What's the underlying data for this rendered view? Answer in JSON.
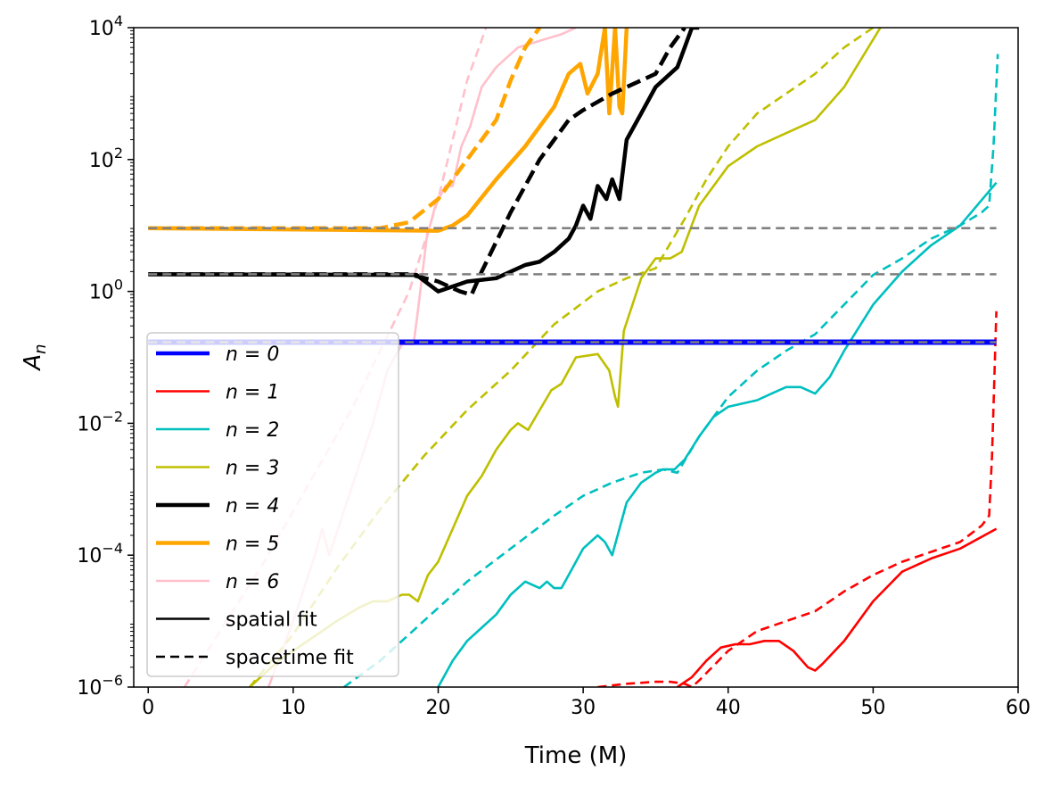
{
  "chart_data": {
    "type": "line",
    "xlabel": "Time (M)",
    "ylabel": "A_n",
    "xlim": [
      -1,
      60
    ],
    "ylim_log10": [
      -6,
      4
    ],
    "yscale": "log",
    "x_ticks": [
      0,
      10,
      20,
      30,
      40,
      50,
      60
    ],
    "x_tick_labels": [
      "0",
      "10",
      "20",
      "30",
      "40",
      "50",
      "60"
    ],
    "y_ticks_log10": [
      -6,
      -4,
      -2,
      0,
      2,
      4
    ],
    "y_tick_labels": [
      "10",
      "10",
      "10",
      "10",
      "10",
      "10"
    ],
    "y_tick_exponents": [
      "−6",
      "−4",
      "−2",
      "0",
      "2",
      "4"
    ],
    "legend_placement": "lower-left",
    "legend": [
      {
        "label": "n = 0",
        "color": "#0000ff",
        "dash": "solid",
        "width": "thick"
      },
      {
        "label": "n = 1",
        "color": "#ff0000",
        "dash": "solid",
        "width": "normal"
      },
      {
        "label": "n = 2",
        "color": "#00bfbf",
        "dash": "solid",
        "width": "normal"
      },
      {
        "label": "n = 3",
        "color": "#bfbf00",
        "dash": "solid",
        "width": "normal"
      },
      {
        "label": "n = 4",
        "color": "#000000",
        "dash": "solid",
        "width": "thick"
      },
      {
        "label": "n = 5",
        "color": "#ffa500",
        "dash": "solid",
        "width": "thick"
      },
      {
        "label": "n = 6",
        "color": "#ffc0cb",
        "dash": "solid",
        "width": "normal"
      },
      {
        "label": "spatial fit",
        "color": "#000000",
        "dash": "solid",
        "width": "normal"
      },
      {
        "label": "spacetime fit",
        "color": "#000000",
        "dash": "dashed",
        "width": "normal"
      }
    ],
    "reference_lines": [
      {
        "name": "reference-line-n5",
        "color": "#808080",
        "dash": "dashed",
        "x_range": [
          0,
          58.5
        ],
        "log10_y": 0.96
      },
      {
        "name": "reference-line-n4",
        "color": "#808080",
        "dash": "dashed",
        "x_range": [
          0,
          58.5
        ],
        "log10_y": 0.26
      },
      {
        "name": "reference-line-n0",
        "color": "#808080",
        "dash": "dashed",
        "x_range": [
          0,
          58.5
        ],
        "log10_y": -0.77
      }
    ],
    "series": [
      {
        "name": "n=6 spacetime fit",
        "color": "#ffc0cb",
        "dash": "dashed",
        "weight": "normal",
        "x": [
          2.5,
          8,
          14,
          18,
          20,
          22,
          23.3
        ],
        "log10_y": [
          -6,
          -4.1,
          -1.8,
          0,
          1.4,
          3.2,
          4
        ]
      },
      {
        "name": "n=6 spatial fit",
        "color": "#ffc0cb",
        "dash": "solid",
        "weight": "normal",
        "x": [
          8.3,
          10,
          11.5,
          12,
          12.5,
          14,
          15.5,
          16.5,
          17.5,
          18.3,
          18.6,
          19.2,
          19.8,
          20.5,
          21,
          21.6,
          22.2,
          23,
          24,
          25.5,
          27,
          28.5,
          29.5
        ],
        "log10_y": [
          -6,
          -5,
          -4,
          -3.6,
          -4,
          -3,
          -2,
          -1.2,
          -0.8,
          -0.8,
          -0.3,
          0.8,
          1.3,
          1.6,
          1.6,
          2.2,
          2.5,
          3.1,
          3.4,
          3.7,
          3.8,
          3.9,
          4
        ]
      },
      {
        "name": "n=5 spacetime fit",
        "color": "#ffa500",
        "dash": "dashed",
        "weight": "thick",
        "x": [
          0,
          16,
          18,
          20,
          22,
          24,
          25,
          26,
          27
        ],
        "log10_y": [
          0.96,
          0.96,
          1.05,
          1.4,
          2.0,
          2.6,
          3.2,
          3.7,
          4
        ]
      },
      {
        "name": "n=5 spatial fit",
        "color": "#ffa500",
        "dash": "solid",
        "weight": "thick",
        "x": [
          0,
          20,
          21,
          22,
          24,
          26,
          28,
          29,
          29.8,
          30.3,
          31,
          31.5,
          31.8,
          32.2,
          32.5,
          32.7,
          33
        ],
        "log10_y": [
          0.96,
          0.92,
          1.0,
          1.15,
          1.7,
          2.2,
          2.8,
          3.3,
          3.45,
          3.0,
          3.3,
          4,
          2.7,
          4,
          2.8,
          2.7,
          4
        ]
      },
      {
        "name": "n=4 spacetime fit",
        "color": "#000000",
        "dash": "dashed",
        "weight": "thick",
        "x": [
          0,
          18,
          20,
          21.5,
          22.3,
          23,
          25,
          27,
          29,
          30,
          32,
          34,
          35,
          36,
          37
        ],
        "log10_y": [
          0.26,
          0.26,
          0.15,
          0.0,
          -0.05,
          0.3,
          1.2,
          2.0,
          2.6,
          2.75,
          3.0,
          3.2,
          3.3,
          3.7,
          4
        ]
      },
      {
        "name": "n=4 spatial fit",
        "color": "#000000",
        "dash": "solid",
        "weight": "thick",
        "x": [
          0,
          18.5,
          20,
          22,
          24,
          26,
          27,
          28,
          29,
          29.5,
          30,
          30.5,
          31,
          31.6,
          32,
          32.5,
          33,
          34,
          35,
          36,
          36.5,
          37,
          37.5,
          38
        ],
        "log10_y": [
          0.26,
          0.25,
          0.0,
          0.15,
          0.2,
          0.4,
          0.45,
          0.6,
          0.8,
          1.0,
          1.3,
          1.1,
          1.6,
          1.4,
          1.7,
          1.4,
          2.3,
          2.7,
          3.1,
          3.3,
          3.4,
          3.7,
          4,
          4
        ]
      },
      {
        "name": "n=3 spacetime fit",
        "color": "#bfbf00",
        "dash": "dashed",
        "weight": "normal",
        "x": [
          7,
          10,
          13,
          16,
          19,
          22,
          25,
          28,
          31,
          33,
          35,
          37,
          38.5,
          40,
          42,
          44,
          46,
          48,
          50
        ],
        "log10_y": [
          -6,
          -5.2,
          -4.2,
          -3.3,
          -2.5,
          -1.8,
          -1.2,
          -0.5,
          0,
          0.2,
          0.35,
          1.1,
          1.7,
          2.2,
          2.7,
          3.0,
          3.3,
          3.7,
          4
        ]
      },
      {
        "name": "n=3 spatial fit",
        "color": "#bfbf00",
        "dash": "solid",
        "weight": "normal",
        "x": [
          7,
          9,
          11,
          13,
          14.5,
          15.5,
          16.5,
          17.5,
          18,
          18.6,
          19.3,
          20,
          21,
          22,
          23,
          24,
          25,
          25.5,
          26.2,
          27,
          27.8,
          28.5,
          29.5,
          31,
          31.8,
          32.2,
          32.4,
          32.8,
          34,
          35,
          36,
          36.8,
          38,
          40,
          42,
          44,
          46,
          48,
          50.5
        ],
        "log10_y": [
          -6,
          -5.6,
          -5.3,
          -5,
          -4.8,
          -4.7,
          -4.7,
          -4.6,
          -4.6,
          -4.7,
          -4.3,
          -4.1,
          -3.6,
          -3.1,
          -2.8,
          -2.4,
          -2.1,
          -2.0,
          -2.1,
          -1.8,
          -1.5,
          -1.4,
          -1.0,
          -0.95,
          -1.2,
          -1.6,
          -1.75,
          -0.6,
          0.2,
          0.5,
          0.5,
          0.6,
          1.3,
          1.9,
          2.2,
          2.4,
          2.6,
          3.1,
          4
        ]
      },
      {
        "name": "n=2 spacetime fit",
        "color": "#00bfbf",
        "dash": "dashed",
        "weight": "normal",
        "x": [
          13.5,
          16,
          19,
          22,
          25,
          28,
          30,
          32,
          34,
          35.5,
          36.5,
          38,
          40,
          42,
          44,
          46,
          48,
          50,
          52,
          54,
          56,
          57.5,
          58,
          58.3,
          58.6
        ],
        "log10_y": [
          -6,
          -5.6,
          -5.0,
          -4.4,
          -3.9,
          -3.4,
          -3.1,
          -2.9,
          -2.75,
          -2.7,
          -2.75,
          -2.2,
          -1.6,
          -1.2,
          -0.9,
          -0.65,
          -0.2,
          0.25,
          0.5,
          0.8,
          1.0,
          1.2,
          1.3,
          2.2,
          3.6
        ]
      },
      {
        "name": "n=2 spatial fit",
        "color": "#00bfbf",
        "dash": "solid",
        "weight": "normal",
        "x": [
          20,
          21,
          22,
          23,
          24,
          25,
          26,
          27,
          27.5,
          28,
          28.5,
          29,
          30,
          31,
          31.5,
          32,
          32.5,
          33,
          34,
          35,
          35.5,
          36.3,
          37,
          38,
          39,
          40,
          42,
          43,
          44,
          45,
          46,
          47,
          48,
          50,
          52,
          54,
          56,
          58.5
        ],
        "log10_y": [
          -6,
          -5.6,
          -5.3,
          -5.1,
          -4.9,
          -4.6,
          -4.4,
          -4.5,
          -4.4,
          -4.5,
          -4.5,
          -4.3,
          -3.9,
          -3.7,
          -3.8,
          -4.0,
          -3.6,
          -3.2,
          -2.9,
          -2.75,
          -2.7,
          -2.7,
          -2.55,
          -2.2,
          -1.9,
          -1.75,
          -1.65,
          -1.55,
          -1.45,
          -1.45,
          -1.55,
          -1.3,
          -0.9,
          -0.2,
          0.3,
          0.7,
          1.0,
          1.65
        ]
      },
      {
        "name": "n=1 spacetime fit",
        "color": "#ff0000",
        "dash": "dashed",
        "weight": "normal",
        "x": [
          31,
          33,
          35,
          36,
          37,
          37.5,
          38,
          40,
          42,
          44,
          46,
          48,
          50,
          52,
          54,
          56,
          57.5,
          58,
          58.2,
          58.5
        ],
        "log10_y": [
          -6,
          -5.95,
          -5.92,
          -5.92,
          -5.95,
          -6,
          -5.9,
          -5.45,
          -5.15,
          -5.0,
          -4.85,
          -4.55,
          -4.3,
          -4.1,
          -3.95,
          -3.8,
          -3.55,
          -3.4,
          -2.5,
          -0.3
        ]
      },
      {
        "name": "n=1 spatial fit",
        "color": "#ff0000",
        "dash": "solid",
        "weight": "normal",
        "x": [
          36.5,
          37.5,
          38.5,
          39.5,
          40.5,
          41.5,
          42.5,
          43.5,
          44.5,
          45.5,
          46,
          46.5,
          48,
          50,
          52,
          54,
          56,
          58.5
        ],
        "log10_y": [
          -6,
          -5.85,
          -5.6,
          -5.4,
          -5.35,
          -5.35,
          -5.3,
          -5.3,
          -5.45,
          -5.7,
          -5.75,
          -5.65,
          -5.3,
          -4.7,
          -4.25,
          -4.05,
          -3.9,
          -3.6
        ]
      },
      {
        "name": "n=0 spatial fit",
        "color": "#0000ff",
        "dash": "solid",
        "weight": "thick",
        "x": [
          0,
          58.5
        ],
        "log10_y": [
          -0.77,
          -0.77
        ]
      }
    ]
  }
}
